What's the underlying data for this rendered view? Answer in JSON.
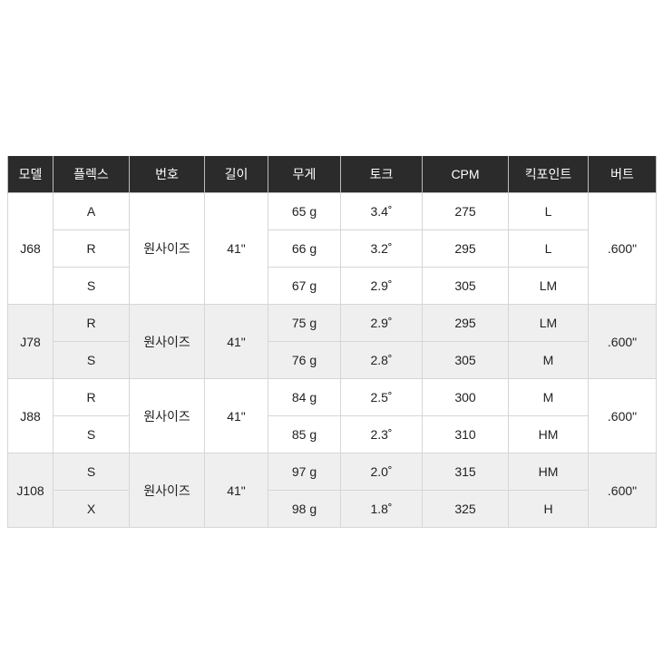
{
  "headers": [
    "모델",
    "플렉스",
    "번호",
    "길이",
    "무게",
    "토크",
    "CPM",
    "킥포인트",
    "버트"
  ],
  "groups": [
    {
      "model": "J68",
      "number": "원사이즈",
      "length": "41\"",
      "butt": ".600\"",
      "shaded": false,
      "rows": [
        {
          "flex": "A",
          "weight": "65 g",
          "torque": "3.4˚",
          "cpm": "275",
          "kick": "L"
        },
        {
          "flex": "R",
          "weight": "66 g",
          "torque": "3.2˚",
          "cpm": "295",
          "kick": "L"
        },
        {
          "flex": "S",
          "weight": "67 g",
          "torque": "2.9˚",
          "cpm": "305",
          "kick": "LM"
        }
      ]
    },
    {
      "model": "J78",
      "number": "원사이즈",
      "length": "41\"",
      "butt": ".600\"",
      "shaded": true,
      "rows": [
        {
          "flex": "R",
          "weight": "75 g",
          "torque": "2.9˚",
          "cpm": "295",
          "kick": "LM"
        },
        {
          "flex": "S",
          "weight": "76 g",
          "torque": "2.8˚",
          "cpm": "305",
          "kick": "M"
        }
      ]
    },
    {
      "model": "J88",
      "number": "원사이즈",
      "length": "41\"",
      "butt": ".600\"",
      "shaded": false,
      "rows": [
        {
          "flex": "R",
          "weight": "84 g",
          "torque": "2.5˚",
          "cpm": "300",
          "kick": "M"
        },
        {
          "flex": "S",
          "weight": "85 g",
          "torque": "2.3˚",
          "cpm": "310",
          "kick": "HM"
        }
      ]
    },
    {
      "model": "J108",
      "number": "원사이즈",
      "length": "41\"",
      "butt": ".600\"",
      "shaded": true,
      "rows": [
        {
          "flex": "S",
          "weight": "97 g",
          "torque": "2.0˚",
          "cpm": "315",
          "kick": "HM"
        },
        {
          "flex": "X",
          "weight": "98 g",
          "torque": "1.8˚",
          "cpm": "325",
          "kick": "H"
        }
      ]
    }
  ]
}
